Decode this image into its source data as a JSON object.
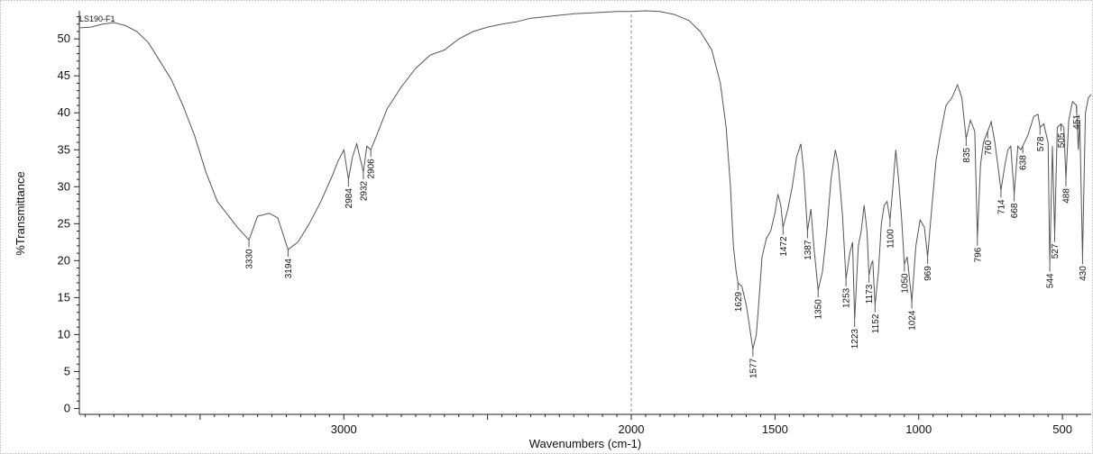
{
  "chart_data": {
    "type": "line",
    "sample_label": "LS190-F1",
    "xlabel": "Wavenumbers (cm-1)",
    "ylabel": "%Transmittance",
    "xlim": [
      3920,
      400
    ],
    "ylim": [
      -0.8,
      53.8
    ],
    "x_reversed": true,
    "x_ticks": [
      3000,
      2000,
      1500,
      1000,
      500
    ],
    "y_ticks": [
      0,
      5,
      10,
      15,
      20,
      25,
      30,
      35,
      40,
      45,
      50
    ],
    "grid": false,
    "reference_line_x": 2000,
    "series": [
      {
        "color": "#555555",
        "points": [
          [
            3920,
            51.5
          ],
          [
            3880,
            51.6
          ],
          [
            3840,
            52.0
          ],
          [
            3800,
            52.2
          ],
          [
            3760,
            51.8
          ],
          [
            3720,
            51.0
          ],
          [
            3680,
            49.5
          ],
          [
            3640,
            47.0
          ],
          [
            3600,
            44.5
          ],
          [
            3560,
            41.0
          ],
          [
            3520,
            37.0
          ],
          [
            3480,
            32.0
          ],
          [
            3440,
            28.0
          ],
          [
            3400,
            26.0
          ],
          [
            3370,
            24.5
          ],
          [
            3330,
            22.8
          ],
          [
            3300,
            26.0
          ],
          [
            3260,
            26.4
          ],
          [
            3230,
            25.8
          ],
          [
            3194,
            21.5
          ],
          [
            3160,
            22.5
          ],
          [
            3120,
            25.0
          ],
          [
            3080,
            28.0
          ],
          [
            3040,
            31.5
          ],
          [
            3020,
            33.5
          ],
          [
            3000,
            35.0
          ],
          [
            2984,
            31.0
          ],
          [
            2970,
            34.0
          ],
          [
            2955,
            35.8
          ],
          [
            2932,
            32.0
          ],
          [
            2920,
            35.5
          ],
          [
            2906,
            35.0
          ],
          [
            2880,
            37.5
          ],
          [
            2850,
            40.5
          ],
          [
            2800,
            43.5
          ],
          [
            2750,
            46.0
          ],
          [
            2700,
            47.8
          ],
          [
            2650,
            48.5
          ],
          [
            2600,
            50.0
          ],
          [
            2550,
            51.0
          ],
          [
            2500,
            51.6
          ],
          [
            2450,
            52.0
          ],
          [
            2400,
            52.3
          ],
          [
            2350,
            52.8
          ],
          [
            2300,
            53.0
          ],
          [
            2250,
            53.2
          ],
          [
            2200,
            53.4
          ],
          [
            2150,
            53.5
          ],
          [
            2100,
            53.6
          ],
          [
            2050,
            53.7
          ],
          [
            2000,
            53.7
          ],
          [
            1950,
            53.8
          ],
          [
            1900,
            53.7
          ],
          [
            1850,
            53.3
          ],
          [
            1800,
            52.5
          ],
          [
            1760,
            51.0
          ],
          [
            1720,
            48.5
          ],
          [
            1690,
            44.0
          ],
          [
            1670,
            38.0
          ],
          [
            1655,
            30.0
          ],
          [
            1645,
            22.0
          ],
          [
            1635,
            18.5
          ],
          [
            1629,
            17.0
          ],
          [
            1615,
            16.5
          ],
          [
            1600,
            14.0
          ],
          [
            1590,
            11.5
          ],
          [
            1577,
            8.0
          ],
          [
            1565,
            10.0
          ],
          [
            1555,
            15.0
          ],
          [
            1545,
            20.5
          ],
          [
            1530,
            23.0
          ],
          [
            1515,
            24.0
          ],
          [
            1500,
            26.5
          ],
          [
            1490,
            29.0
          ],
          [
            1480,
            27.5
          ],
          [
            1472,
            24.5
          ],
          [
            1455,
            27.0
          ],
          [
            1440,
            30.0
          ],
          [
            1425,
            34.0
          ],
          [
            1410,
            35.8
          ],
          [
            1400,
            32.0
          ],
          [
            1387,
            24.0
          ],
          [
            1375,
            27.0
          ],
          [
            1365,
            22.0
          ],
          [
            1350,
            16.0
          ],
          [
            1335,
            18.5
          ],
          [
            1320,
            24.0
          ],
          [
            1305,
            31.0
          ],
          [
            1290,
            35.0
          ],
          [
            1280,
            33.0
          ],
          [
            1265,
            26.0
          ],
          [
            1253,
            17.5
          ],
          [
            1240,
            21.0
          ],
          [
            1230,
            22.5
          ],
          [
            1223,
            12.0
          ],
          [
            1210,
            22.0
          ],
          [
            1200,
            24.0
          ],
          [
            1190,
            27.5
          ],
          [
            1180,
            24.0
          ],
          [
            1173,
            18.0
          ],
          [
            1165,
            19.5
          ],
          [
            1160,
            20.0
          ],
          [
            1152,
            14.0
          ],
          [
            1140,
            18.5
          ],
          [
            1130,
            25.0
          ],
          [
            1120,
            27.5
          ],
          [
            1110,
            28.0
          ],
          [
            1100,
            25.5
          ],
          [
            1090,
            30.0
          ],
          [
            1080,
            35.0
          ],
          [
            1070,
            31.0
          ],
          [
            1060,
            26.0
          ],
          [
            1050,
            19.5
          ],
          [
            1040,
            20.5
          ],
          [
            1024,
            14.5
          ],
          [
            1010,
            22.0
          ],
          [
            995,
            25.5
          ],
          [
            980,
            24.5
          ],
          [
            969,
            20.5
          ],
          [
            955,
            27.0
          ],
          [
            940,
            33.5
          ],
          [
            925,
            37.0
          ],
          [
            905,
            41.0
          ],
          [
            885,
            42.0
          ],
          [
            865,
            43.8
          ],
          [
            850,
            42.0
          ],
          [
            835,
            36.5
          ],
          [
            820,
            39.0
          ],
          [
            805,
            37.5
          ],
          [
            796,
            23.0
          ],
          [
            785,
            33.0
          ],
          [
            775,
            36.0
          ],
          [
            760,
            37.5
          ],
          [
            748,
            38.8
          ],
          [
            735,
            36.0
          ],
          [
            720,
            31.5
          ],
          [
            714,
            29.5
          ],
          [
            700,
            33.0
          ],
          [
            690,
            35.0
          ],
          [
            680,
            35.5
          ],
          [
            668,
            29.0
          ],
          [
            655,
            35.5
          ],
          [
            645,
            35.0
          ],
          [
            638,
            35.5
          ],
          [
            620,
            37.0
          ],
          [
            600,
            39.5
          ],
          [
            585,
            39.8
          ],
          [
            578,
            38.0
          ],
          [
            565,
            38.5
          ],
          [
            550,
            36.0
          ],
          [
            544,
            19.5
          ],
          [
            535,
            35.5
          ],
          [
            527,
            23.5
          ],
          [
            518,
            38.0
          ],
          [
            505,
            38.5
          ],
          [
            495,
            38.0
          ],
          [
            488,
            31.0
          ],
          [
            478,
            39.0
          ],
          [
            465,
            41.5
          ],
          [
            451,
            41.0
          ],
          [
            445,
            35.0
          ],
          [
            440,
            39.0
          ],
          [
            430,
            20.5
          ],
          [
            420,
            40.0
          ],
          [
            410,
            42.0
          ],
          [
            400,
            42.5
          ]
        ]
      }
    ],
    "annotations": [
      {
        "x": 3330,
        "y": 22.8,
        "label": "3330"
      },
      {
        "x": 3194,
        "y": 21.5,
        "label": "3194"
      },
      {
        "x": 2984,
        "y": 31.0,
        "label": "2984"
      },
      {
        "x": 2932,
        "y": 32.0,
        "label": "2932"
      },
      {
        "x": 2906,
        "y": 35.0,
        "label": "2906"
      },
      {
        "x": 1629,
        "y": 17.0,
        "label": "1629"
      },
      {
        "x": 1577,
        "y": 8.0,
        "label": "1577"
      },
      {
        "x": 1472,
        "y": 24.5,
        "label": "1472"
      },
      {
        "x": 1387,
        "y": 24.0,
        "label": "1387"
      },
      {
        "x": 1350,
        "y": 16.0,
        "label": "1350"
      },
      {
        "x": 1253,
        "y": 17.5,
        "label": "1253"
      },
      {
        "x": 1223,
        "y": 12.0,
        "label": "1223"
      },
      {
        "x": 1173,
        "y": 18.0,
        "label": "1173"
      },
      {
        "x": 1152,
        "y": 14.0,
        "label": "1152"
      },
      {
        "x": 1100,
        "y": 25.5,
        "label": "1100"
      },
      {
        "x": 1050,
        "y": 19.5,
        "label": "1050"
      },
      {
        "x": 1024,
        "y": 14.5,
        "label": "1024"
      },
      {
        "x": 969,
        "y": 20.5,
        "label": "969"
      },
      {
        "x": 835,
        "y": 36.5,
        "label": "835"
      },
      {
        "x": 796,
        "y": 23.0,
        "label": "796"
      },
      {
        "x": 760,
        "y": 37.5,
        "label": "760"
      },
      {
        "x": 714,
        "y": 29.5,
        "label": "714"
      },
      {
        "x": 668,
        "y": 29.0,
        "label": "668"
      },
      {
        "x": 638,
        "y": 35.5,
        "label": "638"
      },
      {
        "x": 578,
        "y": 38.0,
        "label": "578"
      },
      {
        "x": 544,
        "y": 19.5,
        "label": "544"
      },
      {
        "x": 527,
        "y": 23.5,
        "label": "527"
      },
      {
        "x": 505,
        "y": 38.5,
        "label": "505"
      },
      {
        "x": 488,
        "y": 31.0,
        "label": "488"
      },
      {
        "x": 451,
        "y": 41.0,
        "label": "451"
      },
      {
        "x": 430,
        "y": 20.5,
        "label": "430"
      }
    ]
  }
}
